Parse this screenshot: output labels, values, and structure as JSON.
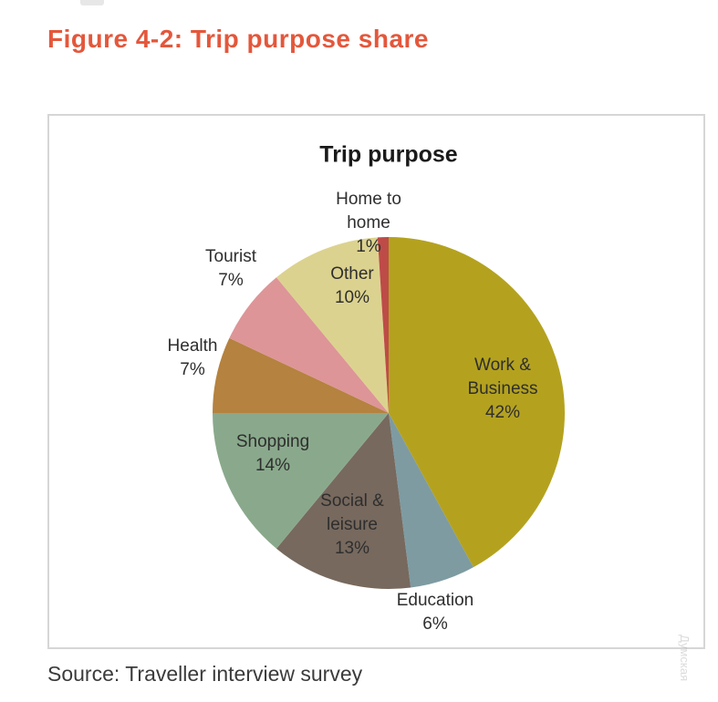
{
  "page": {
    "figure_title": "Figure 4-2: Trip purpose share",
    "source_note": "Source: Traveller interview survey",
    "watermark": "Думская",
    "accent_color": "#e4573b",
    "panel_border_color": "#d6d6d6"
  },
  "chart_data": {
    "type": "pie",
    "title": "Trip purpose",
    "categories": [
      "Work & Business",
      "Education",
      "Social & leisure",
      "Shopping",
      "Health",
      "Tourist",
      "Other",
      "Home to home"
    ],
    "values": [
      42,
      6,
      13,
      14,
      7,
      7,
      10,
      1
    ],
    "colors": [
      "#b4a21f",
      "#7e9ba2",
      "#77695e",
      "#8aa98c",
      "#b5823f",
      "#dd9598",
      "#dcd28f",
      "#be4b48"
    ],
    "start_position": "12-o-clock, clockwise",
    "legend_position": "none, data labels in/near slices",
    "labels": [
      {
        "category": "Work & Business",
        "lines": [
          "Work &",
          "Business",
          "42%"
        ],
        "placement": "inside"
      },
      {
        "category": "Education",
        "lines": [
          "Education",
          "6%"
        ],
        "placement": "outside"
      },
      {
        "category": "Social & leisure",
        "lines": [
          "Social &",
          "leisure",
          "13%"
        ],
        "placement": "inside"
      },
      {
        "category": "Shopping",
        "lines": [
          "Shopping",
          "14%"
        ],
        "placement": "inside"
      },
      {
        "category": "Health",
        "lines": [
          "Health",
          "7%"
        ],
        "placement": "outside"
      },
      {
        "category": "Tourist",
        "lines": [
          "Tourist",
          "7%"
        ],
        "placement": "outside"
      },
      {
        "category": "Other",
        "lines": [
          "Other",
          "10%"
        ],
        "placement": "inside"
      },
      {
        "category": "Home to home",
        "lines": [
          "Home to",
          "home",
          "1%"
        ],
        "placement": "outside"
      }
    ]
  }
}
